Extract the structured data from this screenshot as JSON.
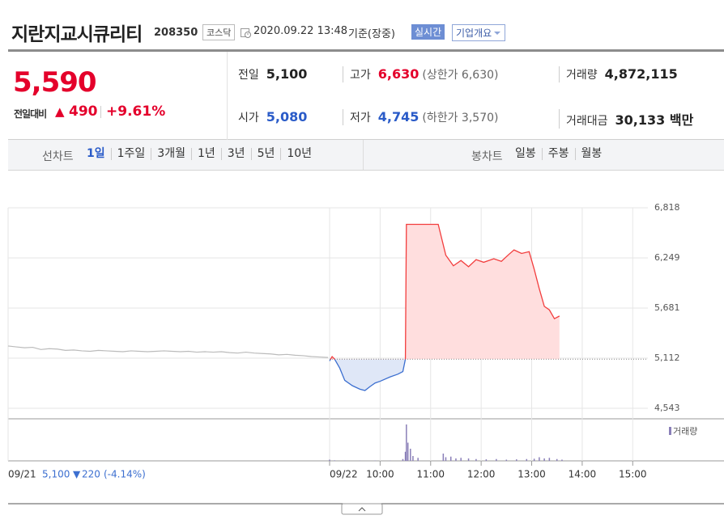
{
  "header": {
    "title": "지란지교시큐리티",
    "code": "208350",
    "market": "코스닥",
    "datetime": "2020.09.22 13:48",
    "basis": "기준(장중)",
    "realtime": "실시간",
    "company_info": "기업개요"
  },
  "quote": {
    "price": "5,590",
    "change_label": "전일대비",
    "change_arrow": "▲",
    "change": "490",
    "change_rate": "+9.61%",
    "color": "#e4002b"
  },
  "stats": [
    {
      "label": "전일",
      "value": "5,100",
      "color": "#222222"
    },
    {
      "label": "고가",
      "value": "6,630",
      "note": "(상한가 6,630)",
      "color": "#e4002b"
    },
    {
      "label": "거래량",
      "value": "4,872,115",
      "color": "#222222"
    },
    {
      "label": "시가",
      "value": "5,080",
      "color": "#2a5bc8"
    },
    {
      "label": "저가",
      "value": "4,745",
      "note": "(하한가 3,570)",
      "color": "#2a5bc8"
    },
    {
      "label": "거래대금",
      "value": "30,133 백만",
      "color": "#222222"
    }
  ],
  "tabs": {
    "line_chart": {
      "label": "선차트",
      "items": [
        "1일",
        "1주일",
        "3개월",
        "1년",
        "3년",
        "5년",
        "10년"
      ],
      "active": 0
    },
    "candle_chart": {
      "label": "봉차트",
      "items": [
        "일봉",
        "주봉",
        "월봉"
      ]
    }
  },
  "chart_data": {
    "type": "line",
    "prev_day": {
      "date": "09/21",
      "close": "5,100",
      "arrow": "▼",
      "change": "220",
      "rate": "(-4.14%)",
      "color": "#bbbbbb",
      "values": [
        5250,
        5240,
        5230,
        5235,
        5210,
        5220,
        5215,
        5200,
        5205,
        5195,
        5190,
        5200,
        5195,
        5190,
        5185,
        5195,
        5190,
        5185,
        5190,
        5195,
        5190,
        5185,
        5190,
        5180,
        5185,
        5180,
        5185,
        5175,
        5170,
        5180,
        5170,
        5165,
        5160,
        5150,
        5155,
        5145,
        5140,
        5130,
        5125,
        5120
      ]
    },
    "x": [
      9.0,
      9.05,
      9.1,
      9.2,
      9.3,
      9.45,
      9.6,
      9.7,
      9.8,
      9.9,
      10.0,
      10.2,
      10.35,
      10.45,
      10.5,
      10.52,
      11.0,
      11.15,
      11.3,
      11.45,
      11.6,
      11.75,
      11.9,
      12.05,
      12.25,
      12.4,
      12.55,
      12.65,
      12.8,
      12.95,
      13.05,
      13.15,
      13.25,
      13.35,
      13.45,
      13.55
    ],
    "values": [
      5080,
      5130,
      5100,
      5000,
      4860,
      4800,
      4760,
      4745,
      4790,
      4830,
      4850,
      4900,
      4930,
      4960,
      5100,
      6630,
      6630,
      6630,
      6280,
      6160,
      6220,
      6150,
      6230,
      6200,
      6240,
      6210,
      6290,
      6340,
      6300,
      6320,
      6120,
      5900,
      5700,
      5660,
      5560,
      5590
    ],
    "baseline": 5100,
    "colors": {
      "up": "#f23d3d",
      "down": "#3c6fd0",
      "up_fill": "#ffdede",
      "down_fill": "#dfe7f7"
    },
    "xlim": [
      9,
      15.3
    ],
    "xticks": [
      {
        "value": 9,
        "label": "09/22"
      },
      {
        "value": 10,
        "label": "10:00"
      },
      {
        "value": 11,
        "label": "11:00"
      },
      {
        "value": 12,
        "label": "12:00"
      },
      {
        "value": 13,
        "label": "13:00"
      },
      {
        "value": 14,
        "label": "14:00"
      },
      {
        "value": 15,
        "label": "15:00"
      }
    ],
    "ylim": [
      4424,
      6818
    ],
    "yticks": [
      {
        "value": 4543,
        "label": "4,543"
      },
      {
        "value": 5112,
        "label": "5,112"
      },
      {
        "value": 5681,
        "label": "5,681"
      },
      {
        "value": 6249,
        "label": "6,249"
      },
      {
        "value": 6818,
        "label": "6,818"
      }
    ],
    "grid": true,
    "volume": {
      "name": "거래량",
      "color": "#8a7fb8",
      "x": [
        9.0,
        9.1,
        9.3,
        9.6,
        9.9,
        10.2,
        10.45,
        10.5,
        10.52,
        10.55,
        10.6,
        10.65,
        10.75,
        11.25,
        11.3,
        11.4,
        11.5,
        11.6,
        11.75,
        11.9,
        12.1,
        12.3,
        12.5,
        12.7,
        12.9,
        13.05,
        13.15,
        13.25,
        13.35,
        13.5,
        13.6
      ],
      "values": [
        20000,
        8000,
        5000,
        4000,
        5000,
        4000,
        30000,
        150000,
        600000,
        300000,
        200000,
        80000,
        50000,
        120000,
        60000,
        70000,
        40000,
        50000,
        40000,
        30000,
        25000,
        30000,
        20000,
        25000,
        30000,
        35000,
        60000,
        40000,
        50000,
        30000,
        20000
      ]
    }
  }
}
